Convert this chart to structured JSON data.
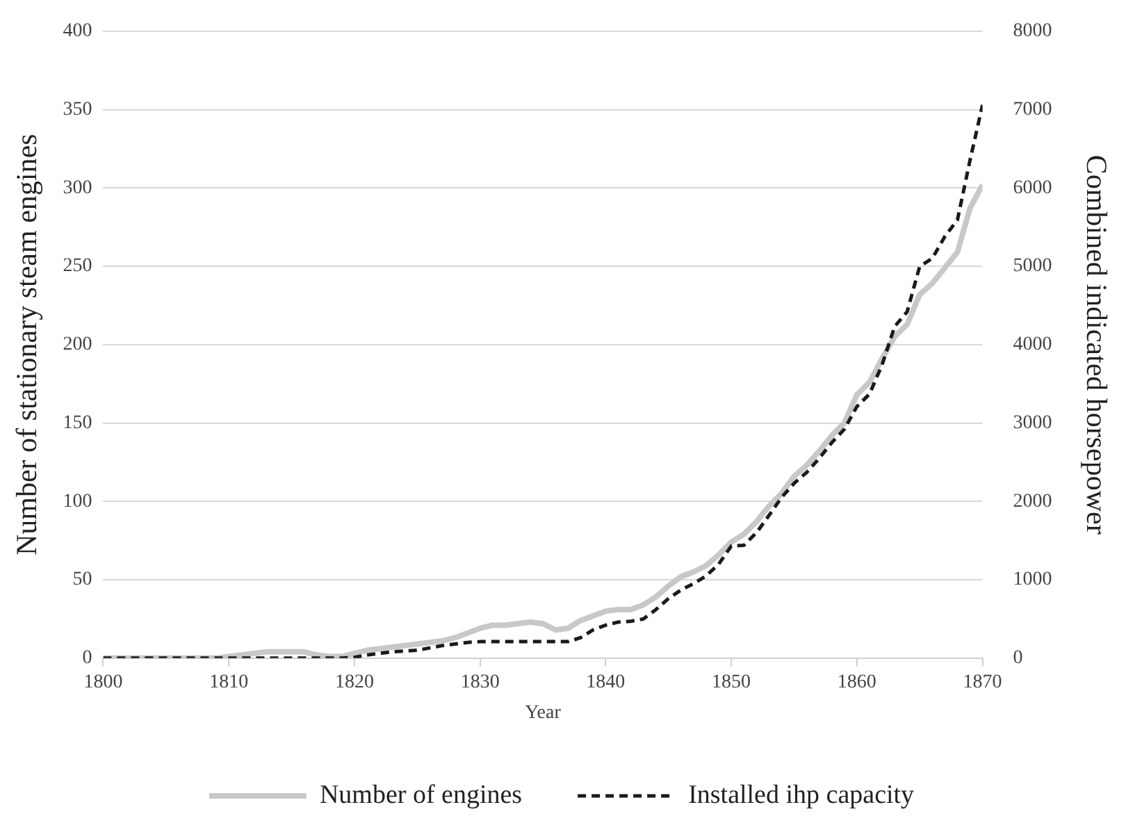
{
  "chart_data": {
    "type": "line",
    "xlabel": "Year",
    "ylabel": "Number of stationary steam engines",
    "y2label": "Combined indicated horsepower",
    "x": [
      1800,
      1801,
      1802,
      1803,
      1804,
      1805,
      1806,
      1807,
      1808,
      1809,
      1810,
      1811,
      1812,
      1813,
      1814,
      1815,
      1816,
      1817,
      1818,
      1819,
      1820,
      1821,
      1822,
      1823,
      1824,
      1825,
      1826,
      1827,
      1828,
      1829,
      1830,
      1831,
      1832,
      1833,
      1834,
      1835,
      1836,
      1837,
      1838,
      1839,
      1840,
      1841,
      1842,
      1843,
      1844,
      1845,
      1846,
      1847,
      1848,
      1849,
      1850,
      1851,
      1852,
      1853,
      1854,
      1855,
      1856,
      1857,
      1858,
      1859,
      1860,
      1861,
      1862,
      1863,
      1864,
      1865,
      1866,
      1867,
      1868,
      1869,
      1870
    ],
    "series": [
      {
        "name": "Number of engines",
        "color": "#c8c8c8",
        "line_style": "solid",
        "values": [
          0,
          0,
          0,
          0,
          0,
          0,
          0,
          0,
          0,
          0,
          1,
          2,
          3,
          4,
          4,
          4,
          4,
          2,
          1,
          1,
          3,
          5,
          6,
          7,
          8,
          9,
          10,
          11,
          13,
          16,
          19,
          21,
          21,
          22,
          23,
          22,
          18,
          19,
          24,
          27,
          30,
          31,
          31,
          34,
          39,
          46,
          52,
          55,
          59,
          66,
          74,
          79,
          87,
          97,
          105,
          116,
          123,
          132,
          142,
          150,
          168,
          176,
          191,
          205,
          213,
          232,
          239,
          249,
          259,
          287,
          302
        ]
      },
      {
        "name": "Installed ihp capacity",
        "color": "#1a1a1a",
        "line_style": "dashed",
        "axis": "y2",
        "values": [
          0,
          0,
          0,
          0,
          0,
          0,
          0,
          0,
          0,
          0,
          0,
          0,
          0,
          0,
          0,
          0,
          0,
          0,
          0,
          0,
          10,
          40,
          60,
          80,
          90,
          100,
          130,
          160,
          180,
          200,
          210,
          210,
          210,
          210,
          210,
          210,
          210,
          210,
          260,
          360,
          420,
          460,
          470,
          500,
          620,
          760,
          870,
          950,
          1050,
          1200,
          1430,
          1440,
          1600,
          1820,
          2050,
          2230,
          2370,
          2550,
          2750,
          2920,
          3210,
          3370,
          3740,
          4230,
          4420,
          5000,
          5100,
          5380,
          5590,
          6350,
          7060
        ]
      }
    ],
    "xlim": [
      1800,
      1870
    ],
    "xticks": [
      1800,
      1810,
      1820,
      1830,
      1840,
      1850,
      1860,
      1870
    ],
    "ylim": [
      0,
      400
    ],
    "yticks": [
      0,
      50,
      100,
      150,
      200,
      250,
      300,
      350,
      400
    ],
    "y2lim": [
      0,
      8000
    ],
    "y2ticks": [
      0,
      1000,
      2000,
      3000,
      4000,
      5000,
      6000,
      7000,
      8000
    ],
    "grid": "y",
    "legend": "bottom",
    "marker": "none"
  }
}
